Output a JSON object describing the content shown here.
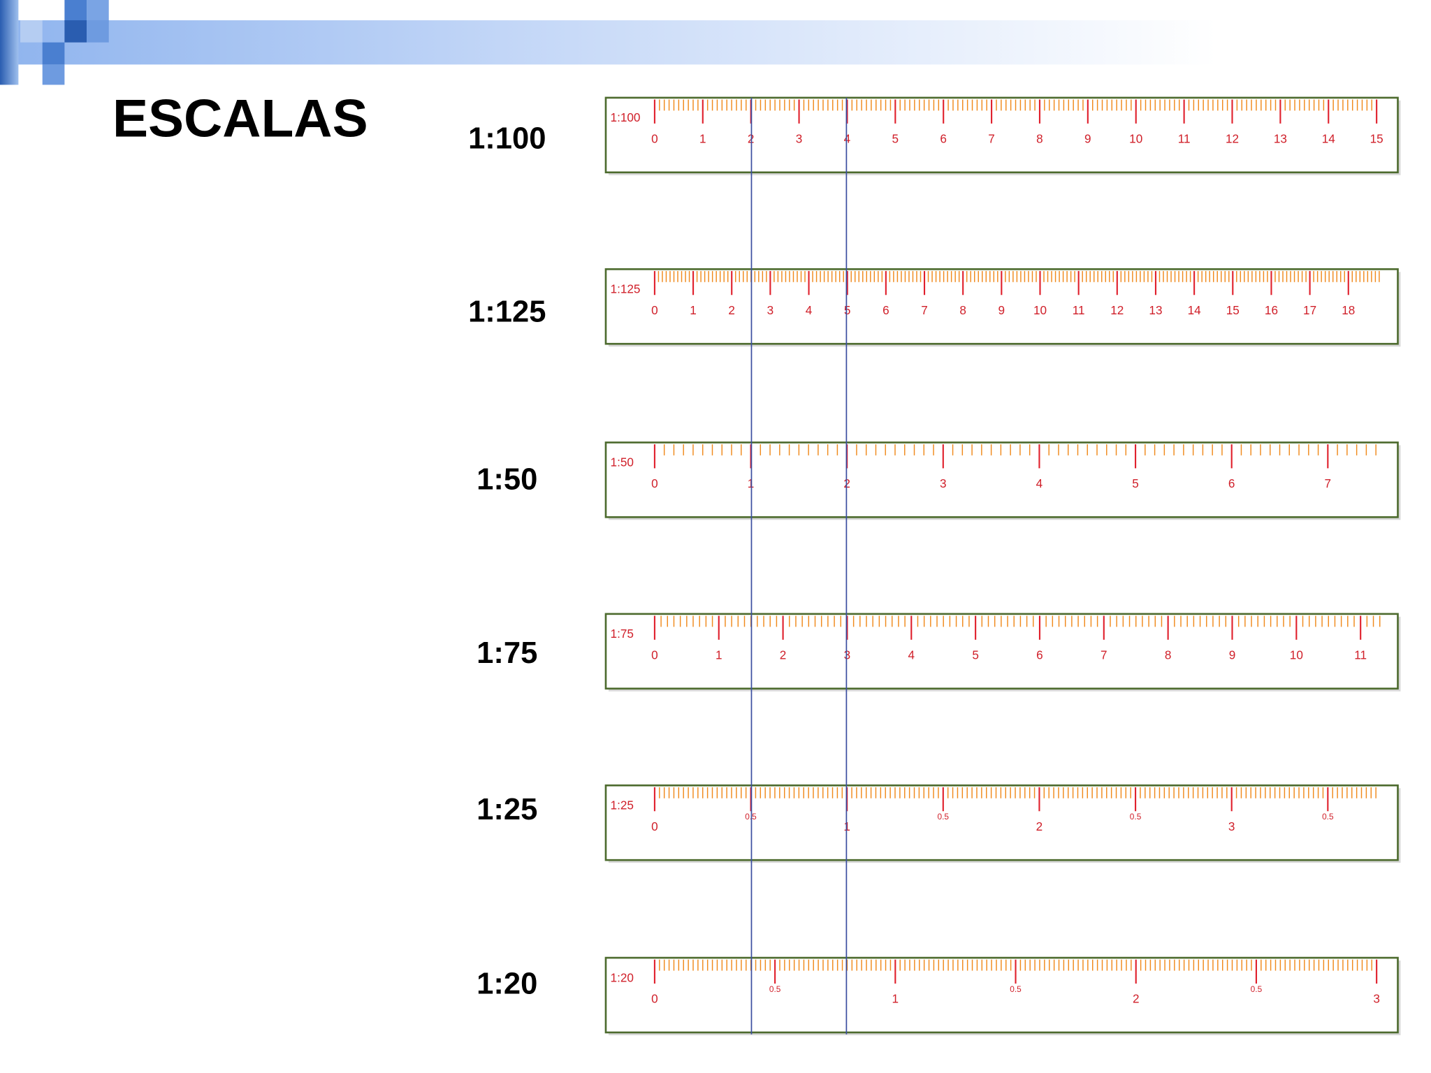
{
  "title": "ESCALAS",
  "rulers": [
    {
      "scale": "1:100",
      "label": "1:100",
      "ticks": [
        "0",
        "1",
        "2",
        "3",
        "4",
        "5",
        "6",
        "7",
        "8",
        "9",
        "10",
        "11",
        "12",
        "13",
        "14",
        "15"
      ]
    },
    {
      "scale": "1:125",
      "label": "1:125",
      "ticks": [
        "0",
        "1",
        "2",
        "3",
        "4",
        "5",
        "6",
        "7",
        "8",
        "9",
        "10",
        "11",
        "12",
        "13",
        "14",
        "15",
        "16",
        "17",
        "18"
      ]
    },
    {
      "scale": "1:50",
      "label": "1:50",
      "ticks": [
        "0",
        "1",
        "2",
        "3",
        "4",
        "5",
        "6",
        "7"
      ]
    },
    {
      "scale": "1:75",
      "label": "1:75",
      "ticks": [
        "0",
        "1",
        "2",
        "3",
        "4",
        "5",
        "6",
        "7",
        "8",
        "9",
        "10",
        "11"
      ]
    },
    {
      "scale": "1:25",
      "label": "1:25",
      "ticks": [
        "0",
        "0.5",
        "1",
        "0.5",
        "2",
        "0.5",
        "3",
        "0.5"
      ]
    },
    {
      "scale": "1:20",
      "label": "1:20",
      "ticks": [
        "0",
        "0.5",
        "1",
        "0.5",
        "2",
        "0.5",
        "3"
      ]
    }
  ]
}
